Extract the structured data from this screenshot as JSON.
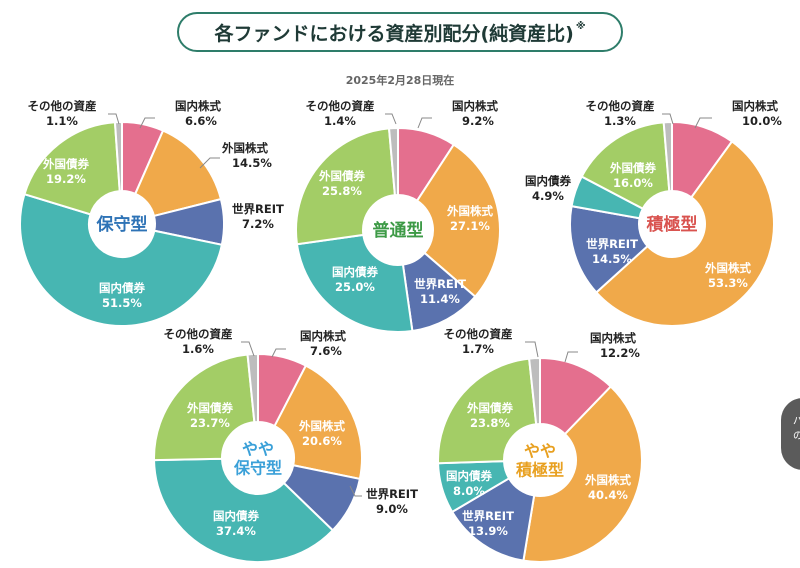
{
  "header": {
    "title": "各ファンドにおける資産別配分(純資産比)",
    "title_mark": "※",
    "as_of": "2025年2月28日現在"
  },
  "side_badge": {
    "lines": [
      "パ",
      "の"
    ]
  },
  "colors": {
    "domestic_stock": "#e46f8e",
    "foreign_stock": "#f0a94a",
    "world_reit": "#5a72ae",
    "domestic_bond": "#47b6b2",
    "foreign_bond": "#a3cd66",
    "other": "#bdbdbd"
  },
  "chart_data": [
    {
      "type": "pie",
      "center_label": [
        "保守型"
      ],
      "center_color": "#2e73b6",
      "slices": [
        {
          "label": "国内株式",
          "value": 6.6,
          "color_key": "domestic_stock",
          "value_text": "6.6%"
        },
        {
          "label": "外国株式",
          "value": 14.5,
          "color_key": "foreign_stock",
          "value_text": "14.5%"
        },
        {
          "label": "世界REIT",
          "value": 7.2,
          "color_key": "world_reit",
          "value_text": "7.2%"
        },
        {
          "label": "国内債券",
          "value": 51.5,
          "color_key": "domestic_bond",
          "value_text": "51.5%"
        },
        {
          "label": "外国債券",
          "value": 19.2,
          "color_key": "foreign_bond",
          "value_text": "19.2%"
        },
        {
          "label": "その他の資産",
          "value": 1.1,
          "color_key": "other",
          "value_text": "1.1%"
        }
      ]
    },
    {
      "type": "pie",
      "center_label": [
        "普通型"
      ],
      "center_color": "#3d9a46",
      "slices": [
        {
          "label": "国内株式",
          "value": 9.2,
          "color_key": "domestic_stock",
          "value_text": "9.2%"
        },
        {
          "label": "外国株式",
          "value": 27.1,
          "color_key": "foreign_stock",
          "value_text": "27.1%"
        },
        {
          "label": "世界REIT",
          "value": 11.4,
          "color_key": "world_reit",
          "value_text": "11.4%"
        },
        {
          "label": "国内債券",
          "value": 25.0,
          "color_key": "domestic_bond",
          "value_text": "25.0%"
        },
        {
          "label": "外国債券",
          "value": 25.8,
          "color_key": "foreign_bond",
          "value_text": "25.8%"
        },
        {
          "label": "その他の資産",
          "value": 1.4,
          "color_key": "other",
          "value_text": "1.4%"
        }
      ]
    },
    {
      "type": "pie",
      "center_label": [
        "積極型"
      ],
      "center_color": "#d9534f",
      "slices": [
        {
          "label": "国内株式",
          "value": 10.0,
          "color_key": "domestic_stock",
          "value_text": "10.0%"
        },
        {
          "label": "外国株式",
          "value": 53.3,
          "color_key": "foreign_stock",
          "value_text": "53.3%"
        },
        {
          "label": "世界REIT",
          "value": 14.5,
          "color_key": "world_reit",
          "value_text": "14.5%"
        },
        {
          "label": "国内債券",
          "value": 4.9,
          "color_key": "domestic_bond",
          "value_text": "4.9%"
        },
        {
          "label": "外国債券",
          "value": 16.0,
          "color_key": "foreign_bond",
          "value_text": "16.0%"
        },
        {
          "label": "その他の資産",
          "value": 1.3,
          "color_key": "other",
          "value_text": "1.3%"
        }
      ]
    },
    {
      "type": "pie",
      "center_label": [
        "やや",
        "保守型"
      ],
      "center_color": "#3aa0d8",
      "slices": [
        {
          "label": "国内株式",
          "value": 7.6,
          "color_key": "domestic_stock",
          "value_text": "7.6%"
        },
        {
          "label": "外国株式",
          "value": 20.6,
          "color_key": "foreign_stock",
          "value_text": "20.6%"
        },
        {
          "label": "世界REIT",
          "value": 9.0,
          "color_key": "world_reit",
          "value_text": "9.0%"
        },
        {
          "label": "国内債券",
          "value": 37.4,
          "color_key": "domestic_bond",
          "value_text": "37.4%"
        },
        {
          "label": "外国債券",
          "value": 23.7,
          "color_key": "foreign_bond",
          "value_text": "23.7%"
        },
        {
          "label": "その他の資産",
          "value": 1.6,
          "color_key": "other",
          "value_text": "1.6%"
        }
      ]
    },
    {
      "type": "pie",
      "center_label": [
        "やや",
        "積極型"
      ],
      "center_color": "#e8a020",
      "slices": [
        {
          "label": "国内株式",
          "value": 12.2,
          "color_key": "domestic_stock",
          "value_text": "12.2%"
        },
        {
          "label": "外国株式",
          "value": 40.4,
          "color_key": "foreign_stock",
          "value_text": "40.4%"
        },
        {
          "label": "世界REIT",
          "value": 13.9,
          "color_key": "world_reit",
          "value_text": "13.9%"
        },
        {
          "label": "国内債券",
          "value": 8.0,
          "color_key": "domestic_bond",
          "value_text": "8.0%"
        },
        {
          "label": "外国債券",
          "value": 23.8,
          "color_key": "foreign_bond",
          "value_text": "23.8%"
        },
        {
          "label": "その他の資産",
          "value": 1.7,
          "color_key": "other",
          "value_text": "1.7%"
        }
      ]
    }
  ]
}
